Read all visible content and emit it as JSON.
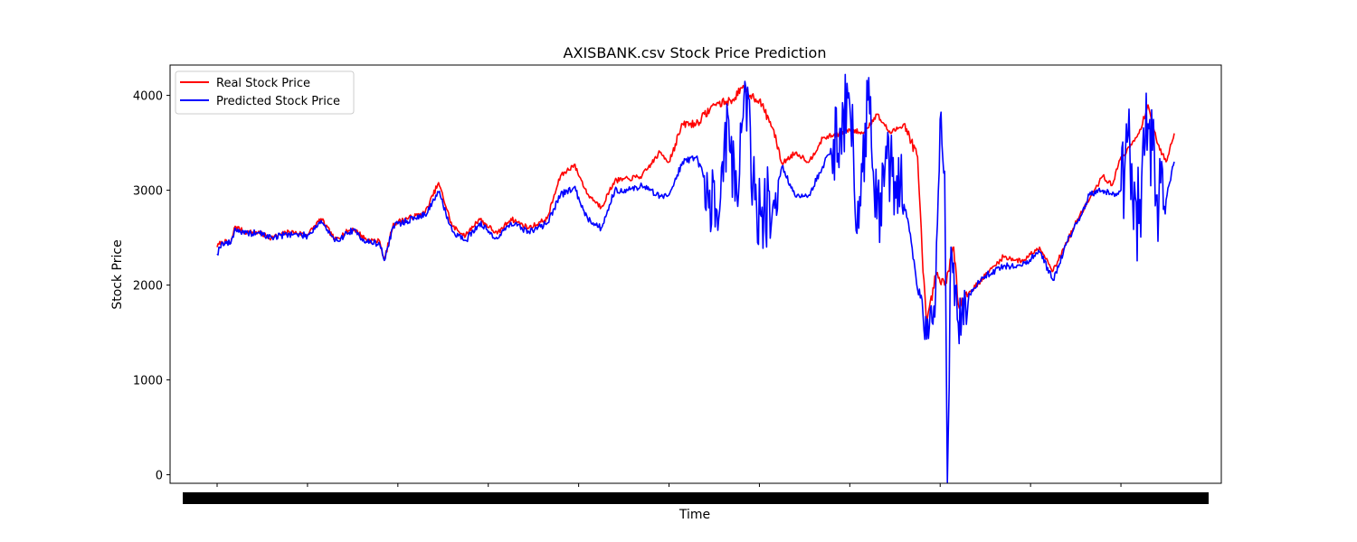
{
  "chart_data": {
    "type": "line",
    "title": "AXISBANK.csv Stock Price Prediction",
    "xlabel": "Time",
    "ylabel": "Stock Price",
    "ylim": [
      -90,
      4320
    ],
    "yticks": [
      0,
      1000,
      2000,
      3000,
      4000
    ],
    "grid": false,
    "legend_position": "upper left",
    "x_count": 1060,
    "series": [
      {
        "name": "Real Stock Price",
        "color": "#ff0000",
        "keyframes": [
          [
            0,
            2400
          ],
          [
            5,
            2460
          ],
          [
            15,
            2440
          ],
          [
            20,
            2620
          ],
          [
            30,
            2560
          ],
          [
            45,
            2550
          ],
          [
            60,
            2500
          ],
          [
            80,
            2560
          ],
          [
            100,
            2530
          ],
          [
            115,
            2700
          ],
          [
            130,
            2480
          ],
          [
            150,
            2600
          ],
          [
            165,
            2480
          ],
          [
            180,
            2460
          ],
          [
            185,
            2260
          ],
          [
            195,
            2650
          ],
          [
            210,
            2700
          ],
          [
            230,
            2760
          ],
          [
            245,
            3080
          ],
          [
            260,
            2620
          ],
          [
            275,
            2520
          ],
          [
            290,
            2700
          ],
          [
            310,
            2540
          ],
          [
            325,
            2700
          ],
          [
            345,
            2600
          ],
          [
            365,
            2700
          ],
          [
            380,
            3150
          ],
          [
            395,
            3270
          ],
          [
            410,
            2960
          ],
          [
            425,
            2820
          ],
          [
            440,
            3100
          ],
          [
            455,
            3120
          ],
          [
            470,
            3150
          ],
          [
            490,
            3400
          ],
          [
            500,
            3300
          ],
          [
            515,
            3700
          ],
          [
            530,
            3700
          ],
          [
            550,
            3900
          ],
          [
            570,
            3950
          ],
          [
            580,
            4080
          ],
          [
            590,
            4000
          ],
          [
            600,
            3950
          ],
          [
            615,
            3650
          ],
          [
            625,
            3280
          ],
          [
            640,
            3400
          ],
          [
            655,
            3300
          ],
          [
            670,
            3550
          ],
          [
            690,
            3600
          ],
          [
            700,
            3640
          ],
          [
            715,
            3600
          ],
          [
            730,
            3800
          ],
          [
            745,
            3600
          ],
          [
            760,
            3700
          ],
          [
            775,
            3350
          ],
          [
            780,
            2350
          ],
          [
            785,
            1560
          ],
          [
            795,
            2100
          ],
          [
            805,
            2000
          ],
          [
            815,
            2400
          ],
          [
            820,
            1800
          ],
          [
            835,
            1950
          ],
          [
            850,
            2100
          ],
          [
            870,
            2300
          ],
          [
            890,
            2250
          ],
          [
            910,
            2400
          ],
          [
            925,
            2150
          ],
          [
            940,
            2450
          ],
          [
            955,
            2750
          ],
          [
            965,
            2900
          ],
          [
            980,
            3150
          ],
          [
            990,
            3050
          ],
          [
            1000,
            3350
          ],
          [
            1010,
            3450
          ],
          [
            1020,
            3600
          ],
          [
            1030,
            3900
          ],
          [
            1040,
            3500
          ],
          [
            1050,
            3300
          ],
          [
            1059,
            3600
          ]
        ]
      },
      {
        "name": "Predicted Stock Price",
        "color": "#0000ff",
        "keyframes": [
          [
            0,
            2330
          ],
          [
            5,
            2450
          ],
          [
            15,
            2440
          ],
          [
            20,
            2600
          ],
          [
            30,
            2540
          ],
          [
            45,
            2550
          ],
          [
            60,
            2500
          ],
          [
            80,
            2540
          ],
          [
            100,
            2520
          ],
          [
            115,
            2680
          ],
          [
            130,
            2460
          ],
          [
            150,
            2580
          ],
          [
            165,
            2460
          ],
          [
            180,
            2430
          ],
          [
            185,
            2260
          ],
          [
            195,
            2620
          ],
          [
            210,
            2680
          ],
          [
            230,
            2740
          ],
          [
            245,
            2980
          ],
          [
            260,
            2570
          ],
          [
            275,
            2470
          ],
          [
            290,
            2650
          ],
          [
            310,
            2490
          ],
          [
            325,
            2660
          ],
          [
            345,
            2560
          ],
          [
            365,
            2650
          ],
          [
            380,
            2950
          ],
          [
            395,
            3030
          ],
          [
            410,
            2700
          ],
          [
            425,
            2600
          ],
          [
            440,
            3000
          ],
          [
            455,
            3000
          ],
          [
            470,
            3050
          ],
          [
            490,
            2940
          ],
          [
            500,
            2950
          ],
          [
            515,
            3300
          ],
          [
            530,
            3350
          ],
          [
            545,
            3000
          ],
          [
            555,
            2700
          ],
          [
            565,
            3800
          ],
          [
            575,
            2950
          ],
          [
            585,
            4080
          ],
          [
            595,
            2900
          ],
          [
            605,
            2800
          ],
          [
            615,
            2850
          ],
          [
            625,
            3250
          ],
          [
            640,
            2930
          ],
          [
            655,
            2950
          ],
          [
            670,
            3250
          ],
          [
            690,
            3650
          ],
          [
            700,
            3900
          ],
          [
            710,
            2600
          ],
          [
            720,
            3950
          ],
          [
            730,
            2700
          ],
          [
            745,
            3300
          ],
          [
            760,
            2850
          ],
          [
            765,
            2650
          ],
          [
            775,
            1950
          ],
          [
            785,
            1430
          ],
          [
            795,
            1900
          ],
          [
            800,
            3750
          ],
          [
            805,
            3200
          ],
          [
            808,
            -80
          ],
          [
            812,
            2400
          ],
          [
            820,
            1600
          ],
          [
            835,
            1950
          ],
          [
            850,
            2100
          ],
          [
            870,
            2200
          ],
          [
            890,
            2200
          ],
          [
            910,
            2350
          ],
          [
            925,
            2050
          ],
          [
            940,
            2450
          ],
          [
            955,
            2720
          ],
          [
            965,
            2950
          ],
          [
            980,
            3000
          ],
          [
            990,
            2950
          ],
          [
            1000,
            3000
          ],
          [
            1010,
            3400
          ],
          [
            1020,
            2650
          ],
          [
            1030,
            3700
          ],
          [
            1040,
            2950
          ],
          [
            1050,
            2900
          ],
          [
            1059,
            3300
          ]
        ]
      }
    ]
  }
}
